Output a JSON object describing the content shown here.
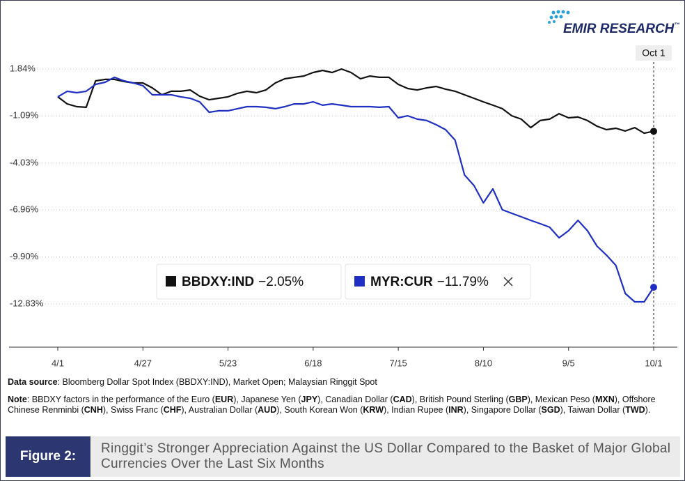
{
  "logo": {
    "text": "EMIR RESEARCH",
    "mark": "™"
  },
  "chart_data": {
    "type": "line",
    "categories": [
      "4/1",
      null,
      null,
      null,
      null,
      null,
      null,
      null,
      null,
      "4/27",
      null,
      null,
      null,
      null,
      null,
      null,
      null,
      null,
      "5/23",
      null,
      null,
      null,
      null,
      null,
      null,
      null,
      null,
      "6/18",
      null,
      null,
      null,
      null,
      null,
      null,
      null,
      null,
      "7/15",
      null,
      null,
      null,
      null,
      null,
      null,
      null,
      null,
      "8/10",
      null,
      null,
      null,
      null,
      null,
      null,
      null,
      null,
      "9/5",
      null,
      null,
      null,
      null,
      null,
      null,
      null,
      null,
      "10/1"
    ],
    "series": [
      {
        "name": "BBDXY:IND",
        "color": "#111111",
        "last_label": "−2.05%",
        "values": [
          0.1,
          -0.34,
          -0.51,
          -0.55,
          1.1,
          1.19,
          1.19,
          1.06,
          0.97,
          0.97,
          0.66,
          0.23,
          0.45,
          0.45,
          0.53,
          0.14,
          -0.08,
          0.01,
          0.1,
          0.32,
          0.45,
          0.36,
          0.53,
          0.97,
          1.23,
          1.32,
          1.4,
          1.62,
          1.75,
          1.62,
          1.84,
          1.62,
          1.23,
          1.4,
          1.32,
          1.32,
          0.88,
          0.62,
          0.53,
          0.66,
          0.75,
          0.58,
          0.45,
          0.23,
          0.01,
          -0.21,
          -0.42,
          -0.64,
          -1.08,
          -1.29,
          -1.82,
          -1.38,
          -1.29,
          -0.95,
          -1.21,
          -1.16,
          -1.38,
          -1.73,
          -1.95,
          -1.86,
          -2.03,
          -1.82,
          -2.17,
          -2.05
        ]
      },
      {
        "name": "MYR:CUR",
        "color": "#1f2fc4",
        "last_label": "−11.79%",
        "values": [
          0.1,
          0.45,
          0.36,
          0.45,
          0.88,
          1.01,
          1.32,
          1.1,
          0.97,
          0.8,
          0.23,
          0.23,
          0.23,
          0.1,
          0.01,
          -0.21,
          -0.86,
          -0.77,
          -0.77,
          -0.64,
          -0.51,
          -0.51,
          -0.55,
          -0.64,
          -0.51,
          -0.34,
          -0.34,
          -0.21,
          -0.42,
          -0.34,
          -0.42,
          -0.51,
          -0.51,
          -0.51,
          -0.55,
          -0.51,
          -1.21,
          -1.08,
          -1.29,
          -1.38,
          -1.64,
          -1.95,
          -2.6,
          -4.78,
          -5.43,
          -6.52,
          -5.65,
          -6.95,
          -7.17,
          -7.39,
          -7.61,
          -7.82,
          -8.04,
          -8.7,
          -8.26,
          -7.61,
          -8.26,
          -9.22,
          -9.78,
          -10.43,
          -12.18,
          -12.7,
          -12.7,
          -11.79
        ]
      }
    ],
    "ylim": [
      -15.53,
      3.58
    ],
    "yticks": [
      {
        "value": 1.84,
        "label": "1.84%"
      },
      {
        "value": -1.09,
        "label": "-1.09%"
      },
      {
        "value": -4.03,
        "label": "-4.03%"
      },
      {
        "value": -6.96,
        "label": "-6.96%"
      },
      {
        "value": -9.9,
        "label": "-9.90%"
      },
      {
        "value": -12.83,
        "label": "-12.83%"
      }
    ],
    "grid": true,
    "annotation": "Oct 1"
  },
  "source": {
    "label": "Data source",
    "text": ": Bloomberg Dollar Spot Index (BBDXY:IND), Market Open; Malaysian Ringgit Spot"
  },
  "note": {
    "label": "Note",
    "parts": [
      ": BBDXY factors in the performance of the Euro (",
      "EUR",
      "), Japanese Yen (",
      "JPY",
      "), Canadian Dollar (",
      "CAD",
      "), British Pound Sterling (",
      "GBP",
      "), Mexican Peso (",
      "MXN",
      "), Offshore Chinese Renminbi (",
      "CNH",
      "), Swiss Franc (",
      "CHF",
      "), Australian Dollar (",
      "AUD",
      "), South Korean Won (",
      "KRW",
      "), Indian Rupee (",
      "INR",
      "), Singapore Dollar (",
      "SGD",
      "), Taiwan Dollar (",
      "TWD",
      ")."
    ]
  },
  "figure": {
    "label": "Figure 2:",
    "caption": "Ringgit’s Stronger Appreciation Against the US Dollar Compared to the Basket of Major Global Currencies Over the Last Six Months"
  }
}
